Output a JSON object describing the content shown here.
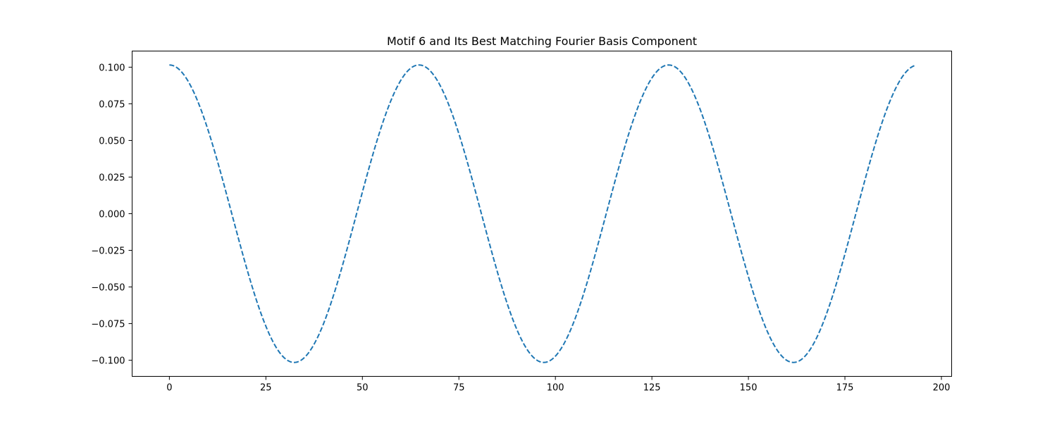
{
  "chart_data": {
    "type": "line",
    "title": "Motif 6 and Its Best Matching Fourier Basis Component",
    "xlabel": "",
    "ylabel": "",
    "xlim": [
      -9.65,
      202.65
    ],
    "ylim": [
      -0.111,
      0.111
    ],
    "x_ticks": [
      0,
      25,
      50,
      75,
      100,
      125,
      150,
      175,
      200
    ],
    "x_tick_labels": [
      "0",
      "25",
      "50",
      "75",
      "100",
      "125",
      "150",
      "175",
      "200"
    ],
    "y_ticks": [
      0.1,
      0.075,
      0.05,
      0.025,
      0.0,
      -0.025,
      -0.05,
      -0.075,
      -0.1
    ],
    "y_tick_labels": [
      "0.100",
      "0.075",
      "0.050",
      "0.025",
      "0.000",
      "−0.025",
      "−0.050",
      "−0.075",
      "−0.100"
    ],
    "grid": false,
    "legend": "none",
    "series": [
      {
        "line_style": "dashed",
        "color": "#1f77b4",
        "x_start": 0,
        "x_end": 193,
        "amplitude": 0.1015,
        "period": 64.6667,
        "phase_shape": "cosine"
      }
    ]
  }
}
